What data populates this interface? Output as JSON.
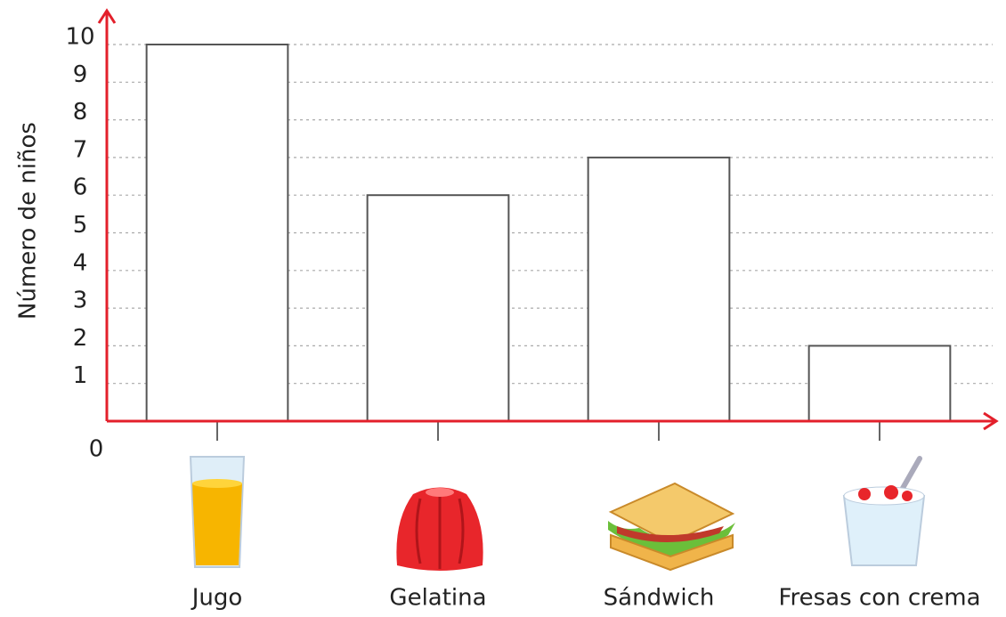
{
  "chart_data": {
    "type": "bar",
    "y_label": "Número de niños",
    "categories": [
      "Jugo",
      "Gelatina",
      "Sándwich",
      "Fresas con crema"
    ],
    "values": [
      10,
      6,
      7,
      2
    ],
    "color": "#ffffff",
    "ylim": [
      0,
      10
    ],
    "yticks": [
      0,
      1,
      2,
      3,
      4,
      5,
      6,
      7,
      8,
      9,
      10
    ],
    "grid": true
  }
}
